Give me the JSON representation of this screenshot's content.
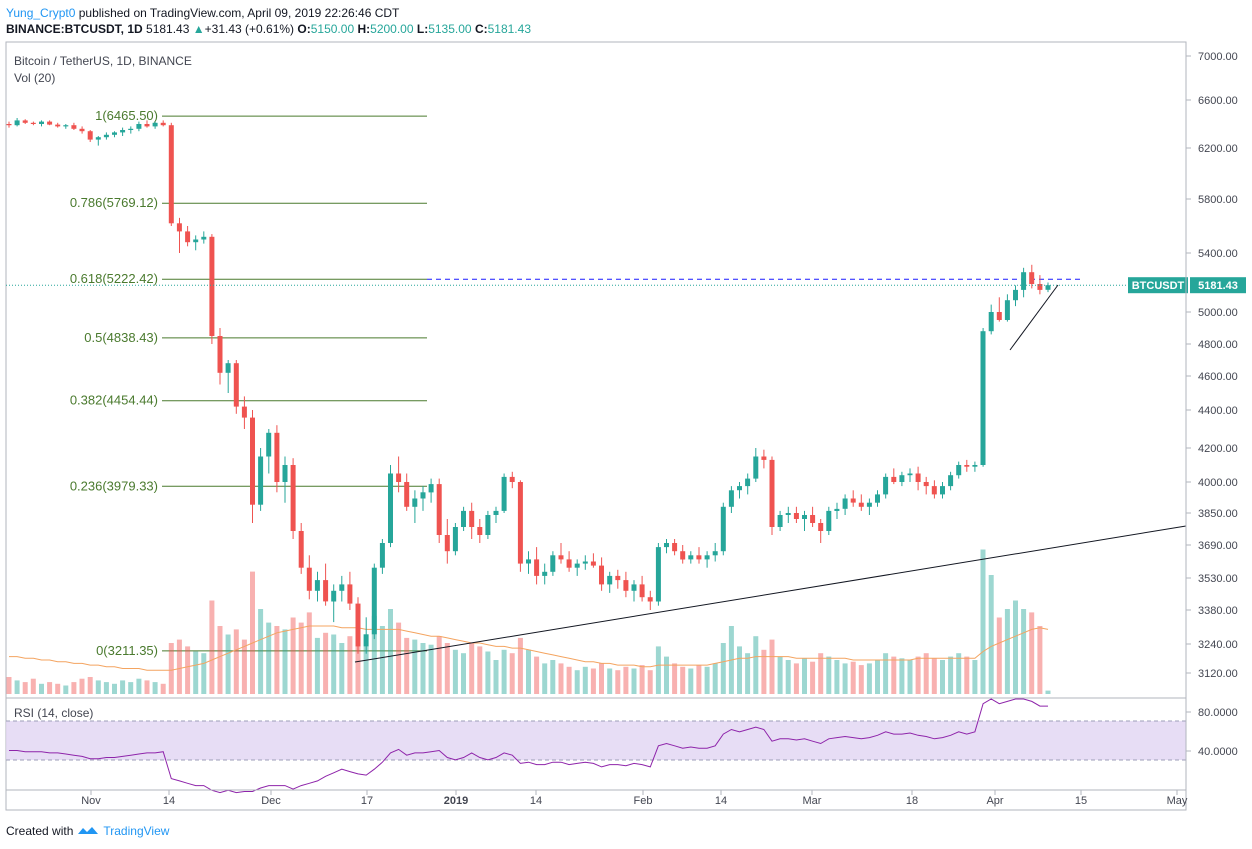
{
  "header": {
    "author": "Yung_Crypt0",
    "published": "published on TradingView.com, April 09, 2019 22:26:46 CDT",
    "symbol": "BINANCE:BTCUSDT, 1D",
    "last": "5181.43",
    "change": "+31.43 (+0.61%)",
    "o_label": "O:",
    "o": "5150.00",
    "h_label": "H:",
    "h": "5200.00",
    "l_label": "L:",
    "l": "5135.00",
    "c_label": "C:",
    "c": "5181.43"
  },
  "legend": {
    "title": "Bitcoin / TetherUS, 1D, BINANCE",
    "vol": "Vol (20)"
  },
  "rsi_legend": "RSI (14, close)",
  "footer": {
    "created": "Created with",
    "brand": "TradingView"
  },
  "colors": {
    "up": "#26a69a",
    "down": "#ef5350",
    "fib": "#4a7a2e",
    "vol_ma": "#f4a460",
    "rsi": "#8e24aa",
    "rsi_band": "#e1d4f2",
    "price_label": "#26a69a"
  },
  "chart_data": {
    "type": "candlestick",
    "symbol_label": "BTCUSDT",
    "last_price": 5181.43,
    "price_ticks": [
      3120,
      3240,
      3380,
      3530,
      3690,
      3850,
      4000,
      4200,
      4400,
      4600,
      4800,
      5000,
      5400,
      5800,
      6200,
      6600,
      7000
    ],
    "rsi_ticks": [
      40,
      80
    ],
    "x_ticks": [
      "Nov",
      "14",
      "Dec",
      "17",
      "2019",
      "14",
      "Feb",
      "14",
      "Mar",
      "18",
      "Apr",
      "15",
      "May"
    ],
    "fib_levels": [
      {
        "label": "1(6465.50)",
        "price": 6465.5
      },
      {
        "label": "0.786(5769.12)",
        "price": 5769.12
      },
      {
        "label": "0.618(5222.42)",
        "price": 5222.42
      },
      {
        "label": "0.5(4838.43)",
        "price": 4838.43
      },
      {
        "label": "0.382(4454.44)",
        "price": 4454.44
      },
      {
        "label": "0.236(3979.33)",
        "price": 3979.33
      },
      {
        "label": "0(3211.35)",
        "price": 3211.35
      }
    ],
    "candles": [
      [
        6400,
        6420,
        6370,
        6390
      ],
      [
        6390,
        6450,
        6380,
        6430
      ],
      [
        6430,
        6440,
        6400,
        6410
      ],
      [
        6410,
        6420,
        6390,
        6400
      ],
      [
        6400,
        6430,
        6380,
        6420
      ],
      [
        6420,
        6430,
        6390,
        6395
      ],
      [
        6395,
        6410,
        6370,
        6380
      ],
      [
        6380,
        6400,
        6360,
        6390
      ],
      [
        6390,
        6410,
        6350,
        6360
      ],
      [
        6360,
        6380,
        6320,
        6340
      ],
      [
        6340,
        6350,
        6250,
        6270
      ],
      [
        6270,
        6300,
        6220,
        6290
      ],
      [
        6290,
        6330,
        6270,
        6310
      ],
      [
        6310,
        6340,
        6290,
        6330
      ],
      [
        6330,
        6370,
        6300,
        6350
      ],
      [
        6350,
        6380,
        6320,
        6360
      ],
      [
        6360,
        6420,
        6340,
        6400
      ],
      [
        6400,
        6430,
        6370,
        6380
      ],
      [
        6380,
        6420,
        6360,
        6410
      ],
      [
        6410,
        6430,
        6380,
        6390
      ],
      [
        6390,
        6410,
        5600,
        5620
      ],
      [
        5620,
        5660,
        5400,
        5560
      ],
      [
        5560,
        5600,
        5450,
        5480
      ],
      [
        5480,
        5530,
        5420,
        5500
      ],
      [
        5500,
        5560,
        5470,
        5520
      ],
      [
        5520,
        5540,
        4800,
        4850
      ],
      [
        4850,
        4900,
        4550,
        4620
      ],
      [
        4620,
        4700,
        4500,
        4680
      ],
      [
        4680,
        4700,
        4380,
        4420
      ],
      [
        4420,
        4480,
        4300,
        4360
      ],
      [
        4360,
        4400,
        3800,
        3890
      ],
      [
        3890,
        4200,
        3860,
        4150
      ],
      [
        4150,
        4300,
        4050,
        4280
      ],
      [
        4280,
        4320,
        3950,
        4000
      ],
      [
        4000,
        4150,
        3900,
        4100
      ],
      [
        4100,
        4140,
        3720,
        3760
      ],
      [
        3760,
        3800,
        3550,
        3580
      ],
      [
        3580,
        3640,
        3430,
        3470
      ],
      [
        3470,
        3560,
        3420,
        3520
      ],
      [
        3520,
        3600,
        3400,
        3420
      ],
      [
        3420,
        3500,
        3330,
        3470
      ],
      [
        3470,
        3540,
        3420,
        3500
      ],
      [
        3500,
        3560,
        3380,
        3410
      ],
      [
        3410,
        3440,
        3200,
        3230
      ],
      [
        3230,
        3350,
        3200,
        3280
      ],
      [
        3280,
        3600,
        3260,
        3580
      ],
      [
        3580,
        3720,
        3550,
        3700
      ],
      [
        3700,
        4100,
        3680,
        4050
      ],
      [
        4050,
        4150,
        3950,
        4000
      ],
      [
        4000,
        4050,
        3860,
        3880
      ],
      [
        3880,
        3960,
        3800,
        3920
      ],
      [
        3920,
        3980,
        3860,
        3950
      ],
      [
        3950,
        4020,
        3900,
        3990
      ],
      [
        3990,
        4020,
        3700,
        3740
      ],
      [
        3740,
        3820,
        3600,
        3660
      ],
      [
        3660,
        3800,
        3640,
        3780
      ],
      [
        3780,
        3880,
        3760,
        3860
      ],
      [
        3860,
        3900,
        3720,
        3780
      ],
      [
        3780,
        3820,
        3700,
        3740
      ],
      [
        3740,
        3860,
        3720,
        3840
      ],
      [
        3840,
        3880,
        3800,
        3860
      ],
      [
        3860,
        4050,
        3850,
        4030
      ],
      [
        4030,
        4060,
        3970,
        4000
      ],
      [
        4000,
        4010,
        3560,
        3600
      ],
      [
        3600,
        3660,
        3550,
        3620
      ],
      [
        3620,
        3680,
        3500,
        3540
      ],
      [
        3540,
        3600,
        3500,
        3560
      ],
      [
        3560,
        3660,
        3540,
        3640
      ],
      [
        3640,
        3700,
        3600,
        3620
      ],
      [
        3620,
        3660,
        3560,
        3580
      ],
      [
        3580,
        3620,
        3540,
        3600
      ],
      [
        3600,
        3640,
        3570,
        3610
      ],
      [
        3610,
        3650,
        3580,
        3590
      ],
      [
        3590,
        3630,
        3470,
        3500
      ],
      [
        3500,
        3560,
        3460,
        3540
      ],
      [
        3540,
        3570,
        3480,
        3520
      ],
      [
        3520,
        3560,
        3440,
        3470
      ],
      [
        3470,
        3520,
        3420,
        3500
      ],
      [
        3500,
        3540,
        3420,
        3440
      ],
      [
        3440,
        3470,
        3380,
        3420
      ],
      [
        3420,
        3700,
        3400,
        3680
      ],
      [
        3680,
        3720,
        3650,
        3700
      ],
      [
        3700,
        3720,
        3640,
        3660
      ],
      [
        3660,
        3690,
        3600,
        3620
      ],
      [
        3620,
        3660,
        3600,
        3640
      ],
      [
        3640,
        3680,
        3600,
        3620
      ],
      [
        3620,
        3660,
        3580,
        3640
      ],
      [
        3640,
        3700,
        3610,
        3660
      ],
      [
        3660,
        3900,
        3640,
        3880
      ],
      [
        3880,
        3980,
        3850,
        3960
      ],
      [
        3960,
        4000,
        3920,
        3980
      ],
      [
        3980,
        4050,
        3940,
        4020
      ],
      [
        4020,
        4200,
        4000,
        4150
      ],
      [
        4150,
        4190,
        4080,
        4130
      ],
      [
        4130,
        4150,
        3740,
        3780
      ],
      [
        3780,
        3860,
        3760,
        3840
      ],
      [
        3840,
        3880,
        3800,
        3850
      ],
      [
        3850,
        3880,
        3800,
        3820
      ],
      [
        3820,
        3860,
        3760,
        3840
      ],
      [
        3840,
        3880,
        3780,
        3800
      ],
      [
        3800,
        3820,
        3700,
        3760
      ],
      [
        3760,
        3880,
        3740,
        3860
      ],
      [
        3860,
        3900,
        3820,
        3870
      ],
      [
        3870,
        3940,
        3840,
        3920
      ],
      [
        3920,
        3960,
        3880,
        3900
      ],
      [
        3900,
        3940,
        3860,
        3880
      ],
      [
        3880,
        3920,
        3840,
        3900
      ],
      [
        3900,
        3960,
        3880,
        3940
      ],
      [
        3940,
        4050,
        3920,
        4030
      ],
      [
        4030,
        4080,
        3990,
        4000
      ],
      [
        4000,
        4060,
        3980,
        4040
      ],
      [
        4040,
        4080,
        4000,
        4050
      ],
      [
        4050,
        4090,
        3960,
        4000
      ],
      [
        4000,
        4030,
        3940,
        3980
      ],
      [
        3980,
        4010,
        3920,
        3940
      ],
      [
        3940,
        4000,
        3920,
        3980
      ],
      [
        3980,
        4060,
        3960,
        4040
      ],
      [
        4040,
        4120,
        4020,
        4100
      ],
      [
        4100,
        4130,
        4060,
        4090
      ],
      [
        4090,
        4120,
        4060,
        4100
      ],
      [
        4100,
        4900,
        4090,
        4880
      ],
      [
        4880,
        5050,
        4860,
        5000
      ],
      [
        5000,
        5100,
        4940,
        4950
      ],
      [
        4950,
        5120,
        4940,
        5080
      ],
      [
        5080,
        5180,
        5040,
        5150
      ],
      [
        5150,
        5300,
        5100,
        5270
      ],
      [
        5270,
        5320,
        5160,
        5190
      ],
      [
        5190,
        5250,
        5120,
        5150
      ],
      [
        5150,
        5200,
        5135,
        5181.43
      ]
    ],
    "volume": [
      0.1,
      0.08,
      0.07,
      0.09,
      0.06,
      0.07,
      0.06,
      0.05,
      0.07,
      0.09,
      0.1,
      0.08,
      0.07,
      0.06,
      0.08,
      0.07,
      0.09,
      0.08,
      0.07,
      0.06,
      0.3,
      0.32,
      0.28,
      0.25,
      0.24,
      0.55,
      0.4,
      0.35,
      0.38,
      0.32,
      0.72,
      0.5,
      0.42,
      0.4,
      0.38,
      0.45,
      0.42,
      0.48,
      0.33,
      0.36,
      0.35,
      0.3,
      0.34,
      0.38,
      0.28,
      0.46,
      0.4,
      0.5,
      0.42,
      0.33,
      0.32,
      0.3,
      0.29,
      0.34,
      0.3,
      0.26,
      0.24,
      0.3,
      0.28,
      0.25,
      0.2,
      0.26,
      0.24,
      0.33,
      0.26,
      0.22,
      0.18,
      0.2,
      0.18,
      0.16,
      0.14,
      0.16,
      0.15,
      0.18,
      0.15,
      0.14,
      0.16,
      0.15,
      0.17,
      0.14,
      0.28,
      0.22,
      0.18,
      0.16,
      0.15,
      0.17,
      0.16,
      0.18,
      0.3,
      0.4,
      0.28,
      0.24,
      0.34,
      0.26,
      0.32,
      0.22,
      0.2,
      0.18,
      0.21,
      0.19,
      0.24,
      0.22,
      0.2,
      0.18,
      0.19,
      0.17,
      0.18,
      0.2,
      0.24,
      0.22,
      0.21,
      0.2,
      0.22,
      0.24,
      0.21,
      0.2,
      0.22,
      0.24,
      0.22,
      0.2,
      0.85,
      0.7,
      0.45,
      0.5,
      0.55,
      0.5,
      0.48,
      0.4,
      0.02
    ],
    "volume_ma": [
      0.22,
      0.22,
      0.21,
      0.21,
      0.2,
      0.2,
      0.19,
      0.19,
      0.18,
      0.18,
      0.17,
      0.17,
      0.16,
      0.16,
      0.15,
      0.15,
      0.15,
      0.14,
      0.14,
      0.14,
      0.14,
      0.15,
      0.16,
      0.17,
      0.18,
      0.2,
      0.22,
      0.24,
      0.26,
      0.28,
      0.3,
      0.32,
      0.34,
      0.36,
      0.37,
      0.38,
      0.39,
      0.4,
      0.4,
      0.4,
      0.4,
      0.39,
      0.39,
      0.39,
      0.38,
      0.38,
      0.38,
      0.38,
      0.38,
      0.37,
      0.36,
      0.35,
      0.34,
      0.34,
      0.33,
      0.32,
      0.31,
      0.3,
      0.3,
      0.29,
      0.28,
      0.28,
      0.27,
      0.27,
      0.26,
      0.25,
      0.24,
      0.23,
      0.22,
      0.21,
      0.2,
      0.19,
      0.19,
      0.18,
      0.18,
      0.17,
      0.17,
      0.17,
      0.16,
      0.16,
      0.17,
      0.17,
      0.17,
      0.17,
      0.17,
      0.17,
      0.17,
      0.18,
      0.19,
      0.2,
      0.21,
      0.21,
      0.22,
      0.22,
      0.22,
      0.22,
      0.22,
      0.21,
      0.21,
      0.21,
      0.21,
      0.21,
      0.21,
      0.21,
      0.2,
      0.2,
      0.2,
      0.2,
      0.2,
      0.2,
      0.2,
      0.2,
      0.21,
      0.21,
      0.21,
      0.21,
      0.21,
      0.21,
      0.21,
      0.21,
      0.25,
      0.28,
      0.3,
      0.32,
      0.34,
      0.36,
      0.38,
      0.39,
      0.38
    ],
    "rsi": [
      44,
      44,
      43,
      43,
      43,
      42,
      42,
      41,
      40,
      39,
      37,
      37,
      38,
      38,
      39,
      40,
      41,
      42,
      42,
      43,
      20,
      18,
      16,
      14,
      14,
      10,
      8,
      10,
      8,
      9,
      9,
      12,
      14,
      14,
      14,
      11,
      14,
      16,
      18,
      22,
      25,
      28,
      26,
      24,
      23,
      28,
      34,
      42,
      45,
      40,
      42,
      42,
      43,
      44,
      38,
      36,
      38,
      42,
      38,
      36,
      38,
      42,
      40,
      33,
      34,
      32,
      32,
      34,
      34,
      32,
      33,
      34,
      33,
      30,
      32,
      32,
      31,
      33,
      32,
      30,
      48,
      50,
      48,
      46,
      47,
      46,
      46,
      48,
      58,
      62,
      60,
      62,
      64,
      62,
      52,
      54,
      54,
      53,
      54,
      52,
      50,
      54,
      55,
      56,
      55,
      54,
      55,
      57,
      60,
      58,
      58,
      59,
      57,
      56,
      54,
      55,
      57,
      60,
      58,
      60,
      84,
      88,
      84,
      86,
      88,
      88,
      86,
      82,
      82
    ]
  }
}
